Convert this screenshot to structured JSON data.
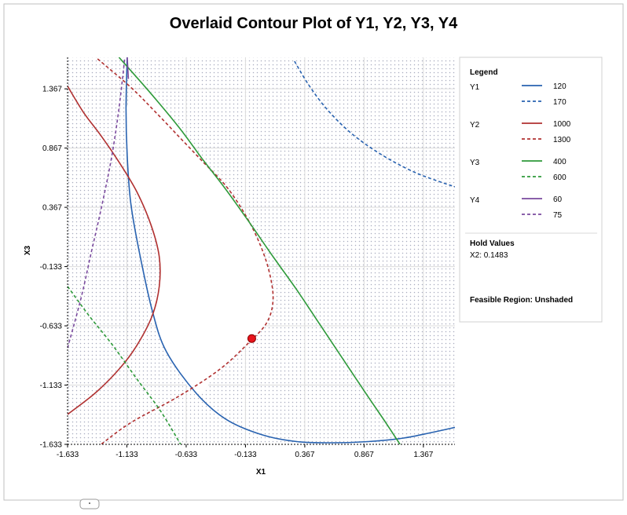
{
  "chart_data": {
    "type": "contour",
    "title": "Overlaid Contour Plot of Y1, Y2, Y3, Y4",
    "xlabel": "X1",
    "ylabel": "X3",
    "xlim": [
      -1.633,
      1.633
    ],
    "ylim": [
      -1.633,
      1.633
    ],
    "xticks": [
      -1.633,
      -1.133,
      -0.633,
      -0.133,
      0.367,
      0.867,
      1.367
    ],
    "yticks": [
      -1.633,
      -1.133,
      -0.633,
      -0.133,
      0.367,
      0.867,
      1.367
    ],
    "xtick_labels": [
      "-1.633",
      "-1.133",
      "-0.633",
      "-0.133",
      "0.367",
      "0.867",
      "1.367"
    ],
    "ytick_labels": [
      "-1.633",
      "-1.133",
      "-0.633",
      "-0.133",
      "0.367",
      "0.867",
      "1.367"
    ],
    "grid": true,
    "legend": {
      "title": "Legend",
      "placement": "right",
      "groups": [
        {
          "name": "Y1",
          "entries": [
            {
              "label": "120",
              "style": "solid"
            },
            {
              "label": "170",
              "style": "dashed"
            }
          ],
          "color": "#2862b0"
        },
        {
          "name": "Y2",
          "entries": [
            {
              "label": "1000",
              "style": "solid"
            },
            {
              "label": "1300",
              "style": "dashed"
            }
          ],
          "color": "#b03030"
        },
        {
          "name": "Y3",
          "entries": [
            {
              "label": "400",
              "style": "solid"
            },
            {
              "label": "600",
              "style": "dashed"
            }
          ],
          "color": "#2e9a3a"
        },
        {
          "name": "Y4",
          "entries": [
            {
              "label": "60",
              "style": "solid"
            },
            {
              "label": "75",
              "style": "dashed"
            }
          ],
          "color": "#7a4a9e"
        }
      ]
    },
    "hold_values": {
      "title": "Hold Values",
      "text": "X2: 0.1483"
    },
    "feasible_region_label": "Feasible Region: Unshaded",
    "contours": [
      {
        "series": "Y1",
        "level": "120",
        "style": "solid",
        "color": "#2862b0",
        "points": [
          [
            -1.13,
            1.65
          ],
          [
            -1.14,
            1.2
          ],
          [
            -1.13,
            0.8
          ],
          [
            -1.1,
            0.4
          ],
          [
            -1.03,
            0.0
          ],
          [
            -0.92,
            -0.5
          ],
          [
            -0.8,
            -0.85
          ],
          [
            -0.55,
            -1.2
          ],
          [
            -0.3,
            -1.42
          ],
          [
            0.0,
            -1.55
          ],
          [
            0.3,
            -1.61
          ],
          [
            0.6,
            -1.62
          ],
          [
            0.9,
            -1.61
          ],
          [
            1.2,
            -1.58
          ],
          [
            1.45,
            -1.53
          ],
          [
            1.633,
            -1.49
          ]
        ]
      },
      {
        "series": "Y1",
        "level": "170",
        "style": "dashed",
        "color": "#2862b0",
        "points": [
          [
            0.28,
            1.6
          ],
          [
            0.4,
            1.4
          ],
          [
            0.55,
            1.2
          ],
          [
            0.75,
            1.0
          ],
          [
            1.0,
            0.82
          ],
          [
            1.3,
            0.66
          ],
          [
            1.633,
            0.54
          ]
        ]
      },
      {
        "series": "Y2",
        "level": "1000",
        "style": "solid",
        "color": "#b03030",
        "points": [
          [
            -1.633,
            1.39
          ],
          [
            -1.5,
            1.17
          ],
          [
            -1.35,
            0.97
          ],
          [
            -1.2,
            0.75
          ],
          [
            -1.05,
            0.5
          ],
          [
            -0.93,
            0.22
          ],
          [
            -0.86,
            -0.05
          ],
          [
            -0.86,
            -0.3
          ],
          [
            -0.92,
            -0.55
          ],
          [
            -1.05,
            -0.8
          ],
          [
            -1.2,
            -1.0
          ],
          [
            -1.4,
            -1.2
          ],
          [
            -1.633,
            -1.38
          ]
        ]
      },
      {
        "series": "Y2",
        "level": "1300",
        "style": "dashed",
        "color": "#b03030",
        "points": [
          [
            -1.38,
            1.62
          ],
          [
            -1.1,
            1.38
          ],
          [
            -0.9,
            1.18
          ],
          [
            -0.7,
            0.97
          ],
          [
            -0.5,
            0.76
          ],
          [
            -0.3,
            0.55
          ],
          [
            -0.15,
            0.33
          ],
          [
            -0.03,
            0.1
          ],
          [
            0.06,
            -0.15
          ],
          [
            0.1,
            -0.4
          ],
          [
            0.05,
            -0.6
          ],
          [
            -0.1,
            -0.77
          ],
          [
            -0.35,
            -1.0
          ],
          [
            -0.7,
            -1.23
          ],
          [
            -1.1,
            -1.45
          ],
          [
            -1.35,
            -1.633
          ]
        ]
      },
      {
        "series": "Y3",
        "level": "400",
        "style": "solid",
        "color": "#2e9a3a",
        "points": [
          [
            -1.2,
            1.633
          ],
          [
            -0.95,
            1.35
          ],
          [
            -0.7,
            1.05
          ],
          [
            -0.5,
            0.78
          ],
          [
            -0.3,
            0.52
          ],
          [
            -0.1,
            0.24
          ],
          [
            0.1,
            -0.05
          ],
          [
            0.3,
            -0.33
          ],
          [
            0.5,
            -0.63
          ],
          [
            0.7,
            -0.93
          ],
          [
            0.9,
            -1.23
          ],
          [
            1.05,
            -1.45
          ],
          [
            1.17,
            -1.633
          ]
        ]
      },
      {
        "series": "Y3",
        "level": "600",
        "style": "dashed",
        "color": "#2e9a3a",
        "points": [
          [
            -1.633,
            -0.3
          ],
          [
            -1.45,
            -0.55
          ],
          [
            -1.25,
            -0.8
          ],
          [
            -1.05,
            -1.08
          ],
          [
            -0.85,
            -1.35
          ],
          [
            -0.68,
            -1.633
          ]
        ]
      },
      {
        "series": "Y4",
        "level": "75",
        "style": "dashed",
        "color": "#7a4a9e",
        "points": [
          [
            -1.633,
            -0.82
          ],
          [
            -1.52,
            -0.4
          ],
          [
            -1.43,
            0.0
          ],
          [
            -1.34,
            0.4
          ],
          [
            -1.26,
            0.8
          ],
          [
            -1.2,
            1.2
          ],
          [
            -1.15,
            1.633
          ]
        ]
      },
      {
        "series": "Y4",
        "level": "60",
        "style": "solid",
        "color": "#7a4a9e",
        "points": [
          [
            -1.13,
            1.633
          ],
          [
            -1.12,
            1.45
          ]
        ]
      }
    ],
    "feasible_region": [
      [
        -1.14,
        1.2
      ],
      [
        -0.95,
        1.35
      ],
      [
        -0.7,
        1.05
      ],
      [
        -0.5,
        0.76
      ],
      [
        -0.3,
        0.52
      ],
      [
        -0.15,
        0.33
      ],
      [
        -0.03,
        0.1
      ],
      [
        0.06,
        -0.15
      ],
      [
        0.1,
        -0.4
      ],
      [
        0.05,
        -0.6
      ],
      [
        -0.1,
        -0.77
      ],
      [
        -0.35,
        -1.0
      ],
      [
        -0.55,
        -1.2
      ],
      [
        -0.8,
        -0.85
      ],
      [
        -0.92,
        -0.5
      ],
      [
        -0.86,
        -0.3
      ],
      [
        -0.86,
        -0.05
      ],
      [
        -0.93,
        0.22
      ],
      [
        -1.05,
        0.5
      ],
      [
        -1.1,
        0.4
      ],
      [
        -1.13,
        0.8
      ]
    ],
    "marker": {
      "x": -0.08,
      "y": -0.74,
      "color": "#e8141c"
    }
  }
}
